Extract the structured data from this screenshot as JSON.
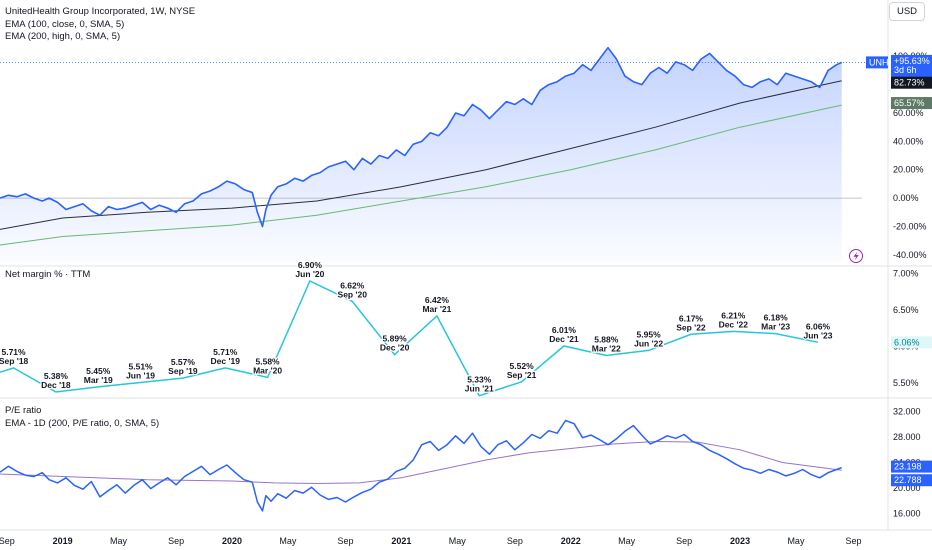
{
  "header": {
    "title": "UnitedHealth Group Incorporated, 1W, NYSE",
    "ema100": "EMA (100, close, 0, SMA, 5)",
    "ema200": "EMA (200, high, 0, SMA, 5)",
    "currency": "USD"
  },
  "panes": {
    "margin_title": "Net margin % · TTM",
    "pe_title": "P/E ratio",
    "pe_ema": "EMA - 1D (200, P/E ratio, 0, SMA, 5)"
  },
  "tags": {
    "symbol": "UNH",
    "price_pct": "+95.63%",
    "countdown": "3d 6h",
    "ema100_pct": "82.73%",
    "ema200_pct": "65.57%",
    "net_margin": "6.06%",
    "pe_value": "23.198",
    "pe_ema_value": "22.788"
  },
  "colors": {
    "price": "#2962ff",
    "ema100": "#2a2e39",
    "ema200": "#66bb6a",
    "net_margin": "#26c6da",
    "pe_ema": "#9575cd"
  },
  "chart_data": [
    {
      "type": "area",
      "pane": "price",
      "scale": "percent",
      "ylim": [
        -45,
        110
      ],
      "yticks": [
        "-40.00%",
        "-20.00%",
        "0.00%",
        "20.00%",
        "40.00%",
        "60.00%",
        "80.00%",
        "100.00%"
      ],
      "ytick_values": [
        -40,
        -20,
        0,
        20,
        40,
        60,
        80,
        100
      ],
      "x_labels": [
        "Sep",
        "2019",
        "May",
        "Sep",
        "2020",
        "May",
        "Sep",
        "2021",
        "May",
        "Sep",
        "2022",
        "May",
        "Sep",
        "2023",
        "May",
        "Sep"
      ],
      "x_label_dates": [
        2018.67,
        2019.0,
        2019.33,
        2019.67,
        2020.0,
        2020.33,
        2020.67,
        2021.0,
        2021.33,
        2021.67,
        2022.0,
        2022.33,
        2022.67,
        2023.0,
        2023.33,
        2023.67
      ],
      "x_range": [
        2018.63,
        2023.72
      ],
      "series": [
        {
          "name": "UNH",
          "x": [
            2018.63,
            2018.68,
            2018.73,
            2018.78,
            2018.83,
            2018.88,
            2018.92,
            2018.97,
            2019.02,
            2019.07,
            2019.12,
            2019.17,
            2019.22,
            2019.27,
            2019.32,
            2019.37,
            2019.42,
            2019.47,
            2019.52,
            2019.57,
            2019.62,
            2019.67,
            2019.72,
            2019.77,
            2019.82,
            2019.87,
            2019.92,
            2019.97,
            2020.02,
            2020.07,
            2020.12,
            2020.15,
            2020.18,
            2020.2,
            2020.23,
            2020.27,
            2020.32,
            2020.37,
            2020.42,
            2020.47,
            2020.52,
            2020.57,
            2020.62,
            2020.67,
            2020.72,
            2020.77,
            2020.82,
            2020.87,
            2020.92,
            2020.97,
            2021.02,
            2021.07,
            2021.12,
            2021.17,
            2021.22,
            2021.27,
            2021.32,
            2021.37,
            2021.42,
            2021.47,
            2021.52,
            2021.57,
            2021.62,
            2021.67,
            2021.72,
            2021.77,
            2021.82,
            2021.87,
            2021.92,
            2021.97,
            2022.02,
            2022.07,
            2022.12,
            2022.17,
            2022.22,
            2022.27,
            2022.32,
            2022.37,
            2022.42,
            2022.47,
            2022.52,
            2022.57,
            2022.62,
            2022.67,
            2022.72,
            2022.77,
            2022.82,
            2022.87,
            2022.92,
            2022.97,
            2023.02,
            2023.07,
            2023.12,
            2023.17,
            2023.22,
            2023.27,
            2023.32,
            2023.37,
            2023.42,
            2023.47,
            2023.52,
            2023.57,
            2023.6
          ],
          "values": [
            0,
            2,
            1,
            3,
            0,
            -2,
            0,
            -3,
            -8,
            -6,
            -4,
            -9,
            -12,
            -6,
            -8,
            -7,
            -5,
            -3,
            -8,
            -5,
            -7,
            -10,
            -4,
            -2,
            3,
            5,
            8,
            12,
            10,
            6,
            4,
            -10,
            -20,
            -8,
            2,
            8,
            10,
            14,
            12,
            16,
            18,
            22,
            24,
            26,
            20,
            28,
            24,
            30,
            28,
            34,
            30,
            38,
            40,
            46,
            44,
            50,
            60,
            58,
            66,
            62,
            56,
            62,
            68,
            66,
            70,
            66,
            76,
            80,
            82,
            86,
            88,
            94,
            90,
            98,
            106,
            98,
            86,
            82,
            80,
            88,
            92,
            88,
            96,
            94,
            90,
            98,
            102,
            96,
            90,
            86,
            80,
            78,
            82,
            84,
            80,
            88,
            86,
            84,
            82,
            78,
            90,
            94,
            95.63
          ]
        },
        {
          "name": "EMA (100, close, 0, SMA, 5)",
          "x": [
            2018.63,
            2019.0,
            2019.5,
            2020.0,
            2020.5,
            2021.0,
            2021.5,
            2022.0,
            2022.5,
            2023.0,
            2023.6
          ],
          "values": [
            -22,
            -14,
            -10,
            -7,
            -2,
            8,
            20,
            35,
            50,
            67,
            82.73
          ]
        },
        {
          "name": "EMA (200, high, 0, SMA, 5)",
          "x": [
            2018.63,
            2019.0,
            2019.5,
            2020.0,
            2020.5,
            2021.0,
            2021.5,
            2022.0,
            2022.5,
            2023.0,
            2023.6
          ],
          "values": [
            -33,
            -27,
            -23,
            -19,
            -12,
            -2,
            8,
            20,
            34,
            50,
            65.57
          ]
        }
      ]
    },
    {
      "type": "line",
      "pane": "net_margin",
      "ylim": [
        5.38,
        7.05
      ],
      "yticks": [
        "7.00%",
        "6.50%",
        "6.00%",
        "5.50%"
      ],
      "ytick_values": [
        7.0,
        6.5,
        6.0,
        5.5
      ],
      "series": [
        {
          "name": "Net margin % · TTM",
          "x": [
            2018.63,
            2018.71,
            2018.96,
            2019.21,
            2019.46,
            2019.71,
            2019.96,
            2020.21,
            2020.46,
            2020.71,
            2020.96,
            2021.21,
            2021.46,
            2021.71,
            2021.96,
            2022.21,
            2022.46,
            2022.71,
            2022.96,
            2023.21,
            2023.46
          ],
          "values": [
            5.65,
            5.71,
            5.38,
            5.45,
            5.51,
            5.57,
            5.71,
            5.58,
            6.9,
            6.62,
            5.89,
            6.42,
            5.33,
            5.52,
            6.01,
            5.88,
            5.95,
            6.17,
            6.21,
            6.18,
            6.06
          ]
        }
      ],
      "labels": [
        {
          "x": 2018.71,
          "value": "5.71%",
          "date": "Sep '18"
        },
        {
          "x": 2018.96,
          "value": "5.38%",
          "date": "Dec '18"
        },
        {
          "x": 2019.21,
          "value": "5.45%",
          "date": "Mar '19"
        },
        {
          "x": 2019.46,
          "value": "5.51%",
          "date": "Jun '19"
        },
        {
          "x": 2019.71,
          "value": "5.57%",
          "date": "Sep '19"
        },
        {
          "x": 2019.96,
          "value": "5.71%",
          "date": "Dec '19"
        },
        {
          "x": 2020.21,
          "value": "5.58%",
          "date": "Mar '20"
        },
        {
          "x": 2020.46,
          "value": "6.90%",
          "date": "Jun '20"
        },
        {
          "x": 2020.71,
          "value": "6.62%",
          "date": "Sep '20"
        },
        {
          "x": 2020.96,
          "value": "5.89%",
          "date": "Dec '20"
        },
        {
          "x": 2021.21,
          "value": "6.42%",
          "date": "Mar '21"
        },
        {
          "x": 2021.46,
          "value": "5.33%",
          "date": "Jun '21"
        },
        {
          "x": 2021.71,
          "value": "5.52%",
          "date": "Sep '21"
        },
        {
          "x": 2021.96,
          "value": "6.01%",
          "date": "Dec '21"
        },
        {
          "x": 2022.21,
          "value": "5.88%",
          "date": "Mar '22"
        },
        {
          "x": 2022.46,
          "value": "5.95%",
          "date": "Jun '22"
        },
        {
          "x": 2022.71,
          "value": "6.17%",
          "date": "Sep '22"
        },
        {
          "x": 2022.96,
          "value": "6.21%",
          "date": "Dec '22"
        },
        {
          "x": 2023.21,
          "value": "6.18%",
          "date": "Mar '23"
        },
        {
          "x": 2023.46,
          "value": "6.06%",
          "date": "Jun '23"
        }
      ]
    },
    {
      "type": "line",
      "pane": "pe_ratio",
      "ylim": [
        14.5,
        33.5
      ],
      "yticks": [
        "32.000",
        "28.000",
        "24.000",
        "20.000",
        "16.000"
      ],
      "ytick_values": [
        32,
        28,
        24,
        20,
        16
      ],
      "series": [
        {
          "name": "P/E ratio",
          "x": [
            2018.63,
            2018.68,
            2018.73,
            2018.78,
            2018.83,
            2018.88,
            2018.92,
            2018.97,
            2019.02,
            2019.07,
            2019.12,
            2019.17,
            2019.22,
            2019.27,
            2019.32,
            2019.37,
            2019.42,
            2019.47,
            2019.52,
            2019.57,
            2019.62,
            2019.67,
            2019.72,
            2019.77,
            2019.82,
            2019.87,
            2019.92,
            2019.97,
            2020.02,
            2020.07,
            2020.12,
            2020.15,
            2020.18,
            2020.2,
            2020.23,
            2020.27,
            2020.32,
            2020.37,
            2020.42,
            2020.47,
            2020.52,
            2020.57,
            2020.62,
            2020.67,
            2020.72,
            2020.77,
            2020.82,
            2020.87,
            2020.92,
            2020.97,
            2021.02,
            2021.07,
            2021.12,
            2021.17,
            2021.22,
            2021.27,
            2021.32,
            2021.37,
            2021.42,
            2021.47,
            2021.52,
            2021.57,
            2021.62,
            2021.67,
            2021.72,
            2021.77,
            2021.82,
            2021.87,
            2021.92,
            2021.97,
            2022.02,
            2022.07,
            2022.12,
            2022.17,
            2022.22,
            2022.27,
            2022.32,
            2022.37,
            2022.42,
            2022.47,
            2022.52,
            2022.57,
            2022.62,
            2022.67,
            2022.72,
            2022.77,
            2022.82,
            2022.87,
            2022.92,
            2022.97,
            2023.02,
            2023.07,
            2023.12,
            2023.17,
            2023.22,
            2023.27,
            2023.32,
            2023.37,
            2023.42,
            2023.47,
            2023.52,
            2023.57,
            2023.6
          ],
          "values": [
            22.5,
            23.4,
            22.6,
            22.0,
            21.8,
            22.4,
            21.3,
            20.8,
            21.6,
            20.4,
            19.8,
            21.0,
            18.6,
            19.6,
            20.5,
            19.2,
            20.4,
            21.3,
            19.9,
            20.8,
            21.6,
            20.5,
            21.8,
            22.6,
            23.4,
            22.1,
            22.9,
            23.6,
            22.4,
            21.3,
            20.9,
            17.8,
            16.4,
            18.8,
            17.9,
            19.1,
            18.4,
            19.6,
            19.2,
            20.1,
            18.9,
            18.2,
            18.5,
            17.8,
            18.6,
            19.3,
            19.8,
            20.9,
            21.4,
            22.6,
            23.1,
            24.4,
            26.8,
            27.3,
            25.9,
            26.8,
            28.2,
            27.0,
            28.6,
            26.5,
            25.3,
            26.8,
            27.4,
            26.0,
            27.1,
            28.4,
            27.8,
            29.0,
            28.6,
            30.6,
            30.1,
            27.9,
            28.3,
            27.6,
            26.8,
            27.7,
            28.9,
            29.8,
            28.3,
            26.9,
            27.5,
            28.2,
            27.8,
            28.4,
            27.3,
            26.8,
            25.9,
            25.3,
            24.6,
            23.8,
            23.1,
            22.8,
            22.3,
            22.9,
            22.5,
            21.9,
            22.3,
            22.9,
            22.1,
            21.6,
            22.4,
            22.9,
            23.198
          ]
        },
        {
          "name": "EMA - 1D (200, P/E ratio, 0, SMA, 5)",
          "x": [
            2018.63,
            2019.0,
            2019.5,
            2020.0,
            2020.25,
            2020.5,
            2020.75,
            2021.0,
            2021.25,
            2021.5,
            2021.75,
            2022.0,
            2022.25,
            2022.5,
            2022.75,
            2023.0,
            2023.25,
            2023.6
          ],
          "values": [
            22.2,
            21.8,
            21.3,
            21.1,
            20.8,
            20.7,
            20.8,
            21.6,
            23.0,
            24.4,
            25.5,
            26.2,
            26.9,
            27.3,
            27.2,
            26.0,
            24.0,
            22.788
          ]
        }
      ]
    }
  ]
}
